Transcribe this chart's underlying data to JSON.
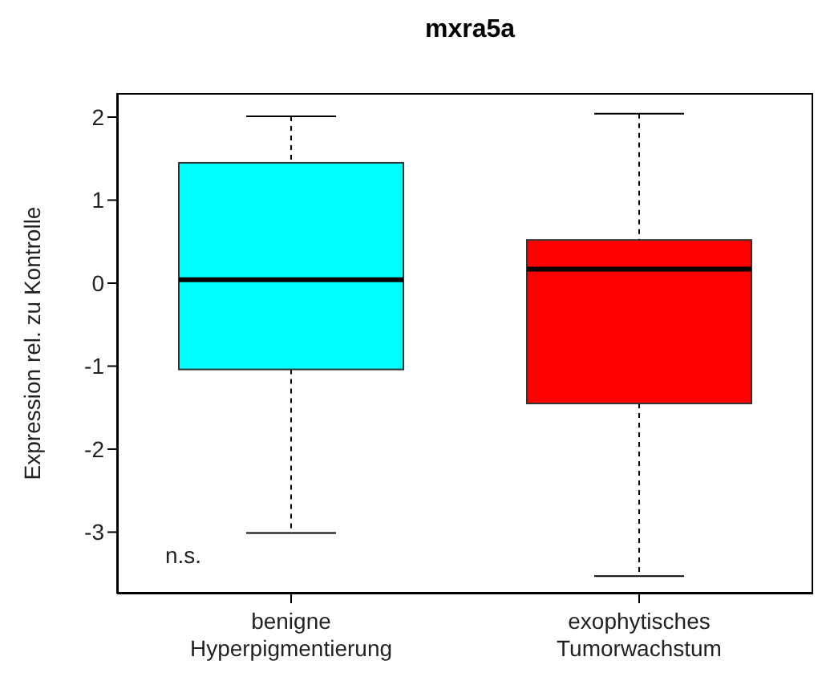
{
  "chart_data": {
    "type": "box",
    "title": "mxra5a",
    "ylabel": "Expression rel. zu Kontrolle",
    "categories": [
      "benigne\nHyperpigmentierung",
      "exophytisches\nTumorwachstum"
    ],
    "colors": [
      "#00ffff",
      "#ff0000"
    ],
    "boxes": [
      {
        "low": -3.01,
        "q1": -1.04,
        "median": 0.04,
        "q3": 1.45,
        "high": 2.01
      },
      {
        "low": -3.53,
        "q1": -1.45,
        "median": 0.17,
        "q3": 0.52,
        "high": 2.04
      }
    ],
    "ylim": [
      -3.74,
      2.29
    ],
    "yticks": [
      -3,
      -2,
      -1,
      0,
      1,
      2
    ],
    "grid": false,
    "legend": false,
    "annotations": [
      "n.s."
    ]
  }
}
